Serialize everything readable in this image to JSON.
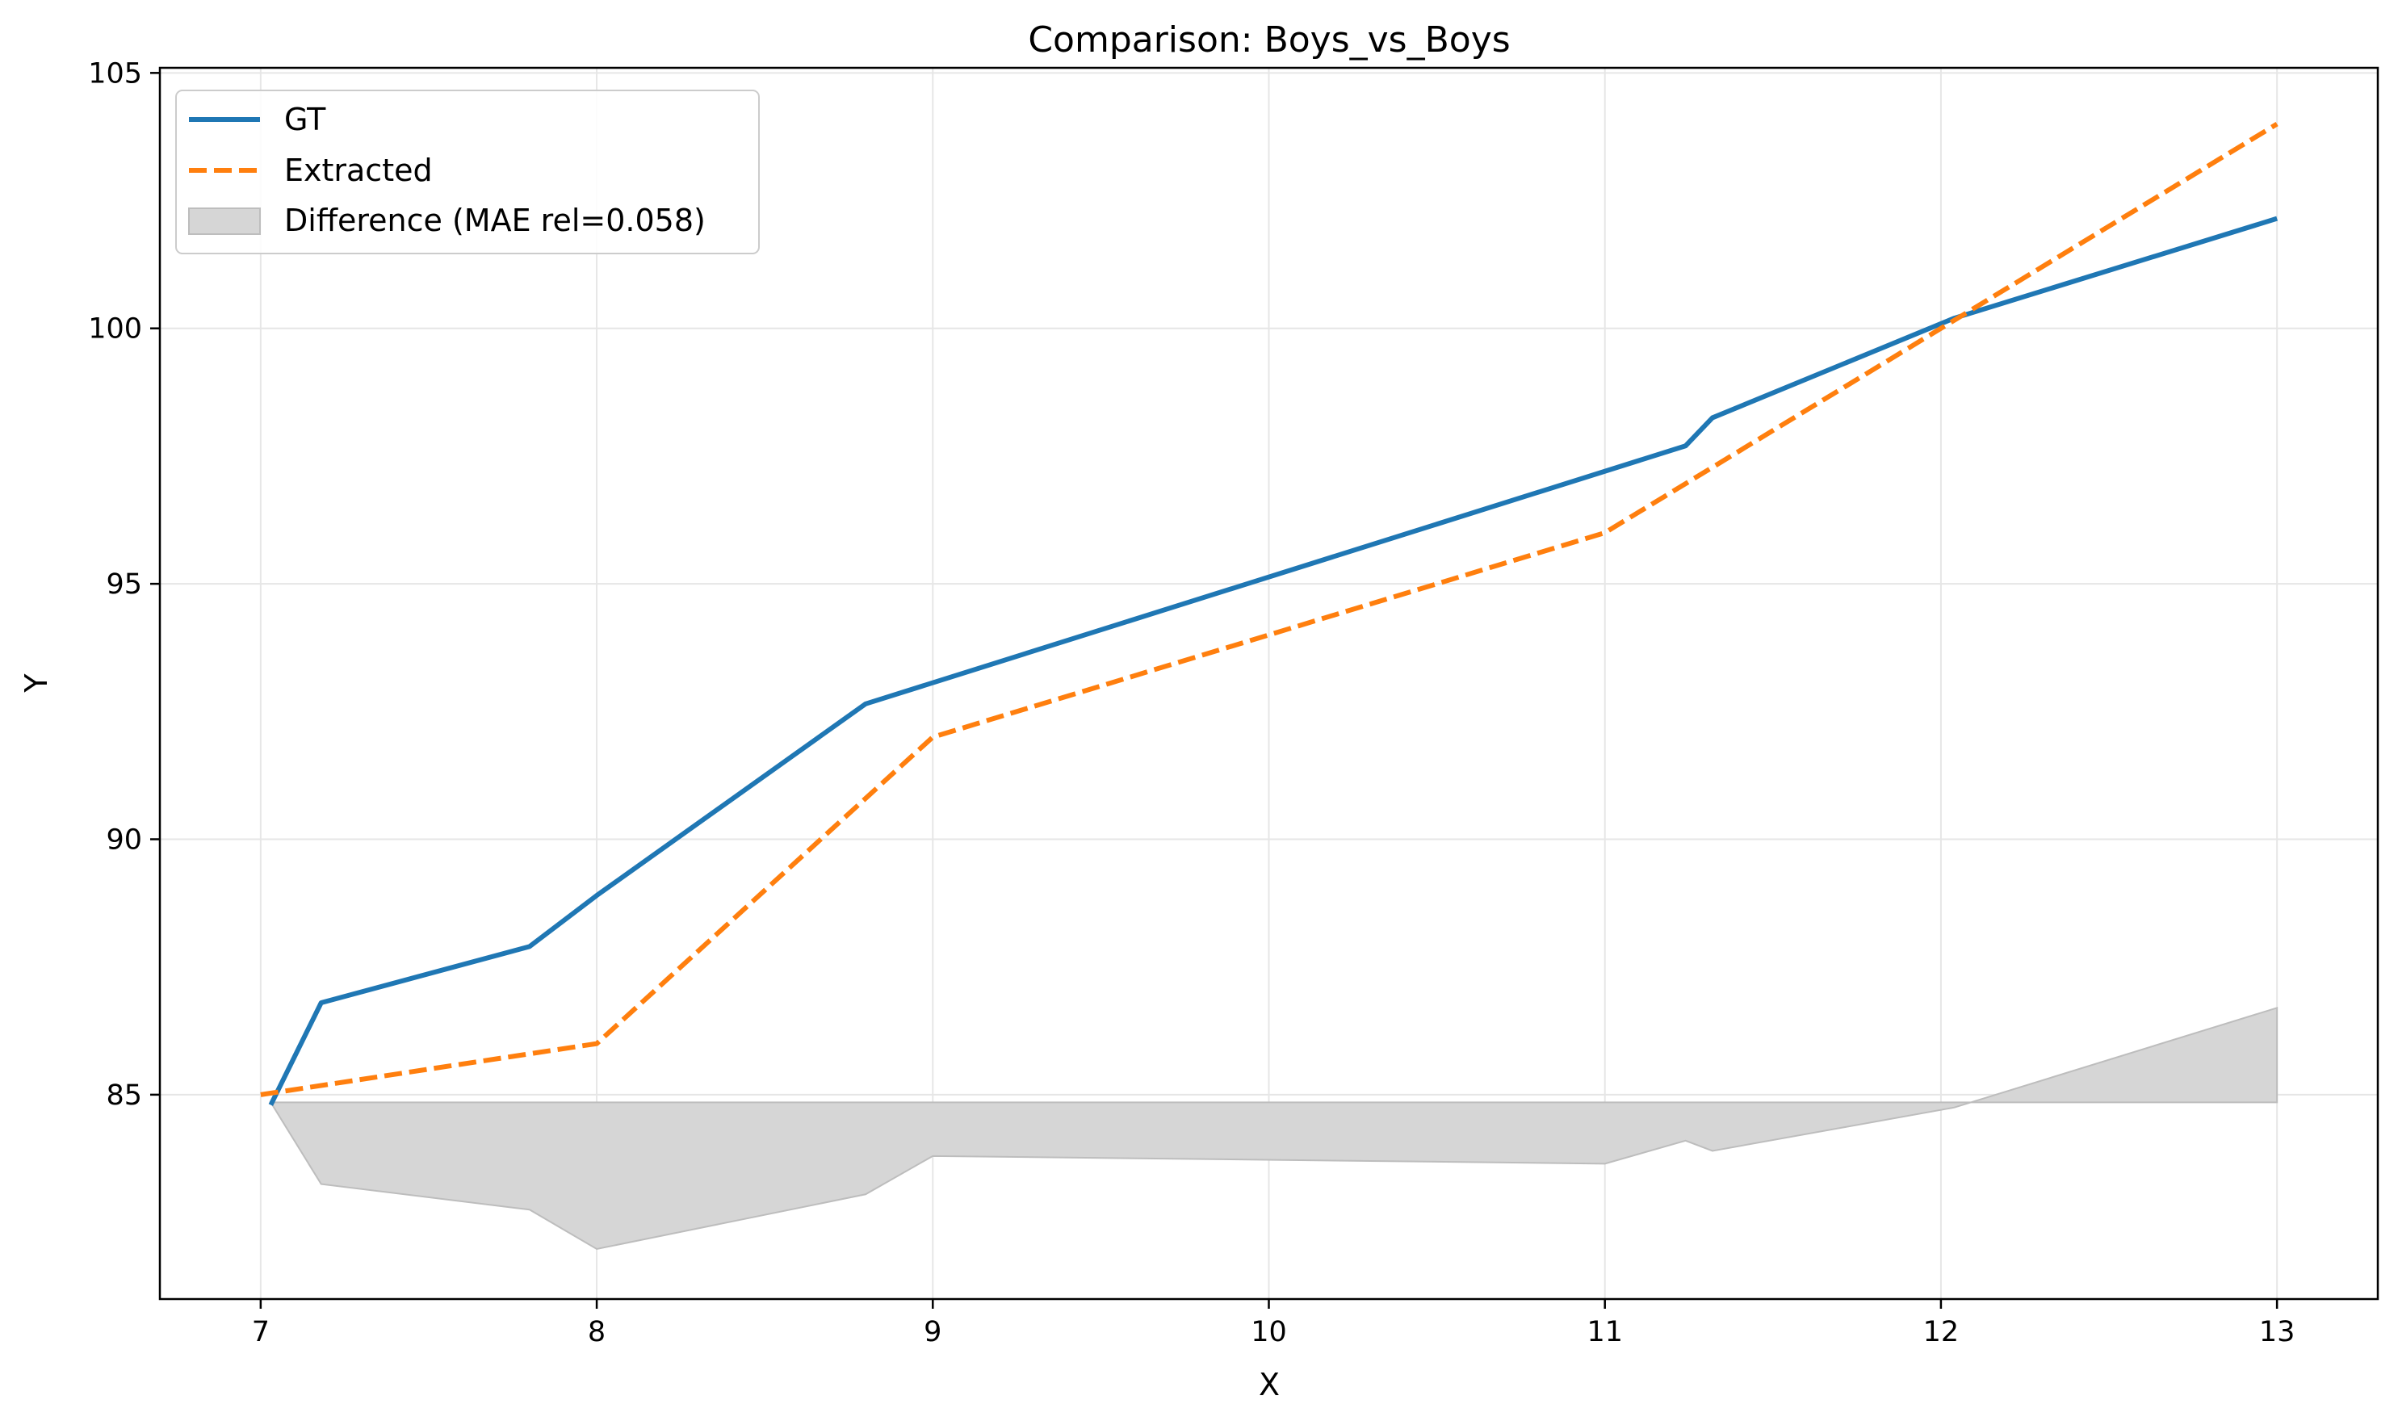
{
  "chart_data": {
    "type": "line",
    "title": "Comparison: Boys_vs_Boys",
    "xlabel": "X",
    "ylabel": "Y",
    "xlim": [
      6.7,
      13.3
    ],
    "ylim": [
      81.0,
      105.1
    ],
    "xticks": [
      7,
      8,
      9,
      10,
      11,
      12,
      13
    ],
    "yticks": [
      85,
      90,
      95,
      100,
      105
    ],
    "grid": true,
    "legend_position": "top-left",
    "series": [
      {
        "name": "GT",
        "style": "solid",
        "color": "#1f77b4",
        "x": [
          7.03,
          7.18,
          7.8,
          8.0,
          8.8,
          11.24,
          11.32,
          12.04,
          13.0
        ],
        "y": [
          84.8,
          86.8,
          87.9,
          88.9,
          92.65,
          97.7,
          98.25,
          100.2,
          102.15
        ]
      },
      {
        "name": "Extracted",
        "style": "dashed",
        "color": "#ff7f0e",
        "x": [
          7.0,
          8.0,
          9.0,
          11.0,
          12.0,
          13.0
        ],
        "y": [
          85.0,
          86.0,
          92.0,
          96.0,
          100.0,
          104.0
        ]
      }
    ],
    "difference_area": {
      "name": "Difference (MAE rel=0.058)",
      "color": "#d6d6d6",
      "baseline": 84.85,
      "x": [
        7.03,
        7.18,
        7.8,
        8.0,
        8.8,
        9.0,
        11.0,
        11.24,
        11.32,
        12.04,
        13.0
      ],
      "y": [
        84.85,
        83.25,
        82.75,
        81.98,
        83.05,
        83.8,
        83.65,
        84.1,
        83.9,
        84.75,
        86.7
      ]
    }
  }
}
